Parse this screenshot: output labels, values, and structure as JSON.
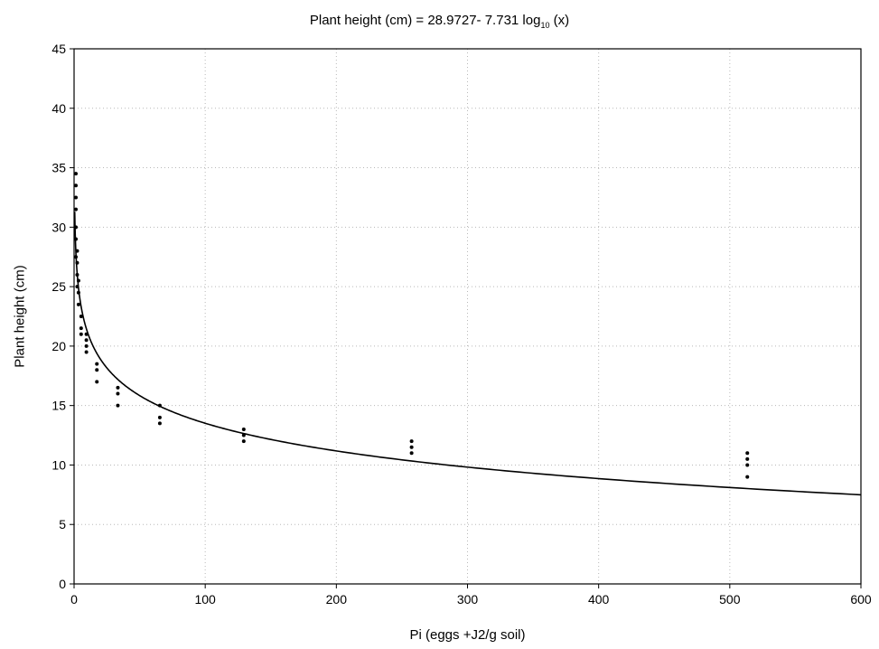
{
  "chart_data": {
    "type": "scatter",
    "title": {
      "prefix": "Plant height (cm) = 28.9727- 7.731 log",
      "subscript": "10",
      "suffix": " (x)"
    },
    "xlabel": "Pi (eggs +J2/g soil)",
    "ylabel": "Plant height (cm)",
    "xlim": [
      0,
      600
    ],
    "ylim": [
      0,
      45
    ],
    "xticks": [
      0,
      100,
      200,
      300,
      400,
      500,
      600
    ],
    "yticks": [
      0,
      5,
      10,
      15,
      20,
      25,
      30,
      35,
      40,
      45
    ],
    "grid": true,
    "fit": {
      "intercept": 28.9727,
      "slope": -7.731,
      "log_base": 10
    },
    "series": [
      {
        "points": [
          {
            "x": 0,
            "y": 34.5
          },
          {
            "x": 0,
            "y": 33.5
          },
          {
            "x": 0,
            "y": 32.5
          },
          {
            "x": 0,
            "y": 31.5
          },
          {
            "x": 0,
            "y": 30
          },
          {
            "x": 0,
            "y": 29
          },
          {
            "x": 0,
            "y": 27.5
          },
          {
            "x": 1,
            "y": 28
          },
          {
            "x": 1,
            "y": 27
          },
          {
            "x": 1,
            "y": 26
          },
          {
            "x": 1,
            "y": 25
          },
          {
            "x": 2,
            "y": 25.5
          },
          {
            "x": 2,
            "y": 24.5
          },
          {
            "x": 2,
            "y": 23.5
          },
          {
            "x": 4,
            "y": 22.5
          },
          {
            "x": 4,
            "y": 21.5
          },
          {
            "x": 4,
            "y": 21
          },
          {
            "x": 8,
            "y": 21
          },
          {
            "x": 8,
            "y": 20.5
          },
          {
            "x": 8,
            "y": 20
          },
          {
            "x": 8,
            "y": 19.5
          },
          {
            "x": 16,
            "y": 18.5
          },
          {
            "x": 16,
            "y": 18
          },
          {
            "x": 16,
            "y": 17
          },
          {
            "x": 32,
            "y": 16.5
          },
          {
            "x": 32,
            "y": 16
          },
          {
            "x": 32,
            "y": 15
          },
          {
            "x": 64,
            "y": 15
          },
          {
            "x": 64,
            "y": 14
          },
          {
            "x": 64,
            "y": 13.5
          },
          {
            "x": 128,
            "y": 13
          },
          {
            "x": 128,
            "y": 12.5
          },
          {
            "x": 128,
            "y": 12
          },
          {
            "x": 256,
            "y": 12
          },
          {
            "x": 256,
            "y": 11.5
          },
          {
            "x": 256,
            "y": 11
          },
          {
            "x": 512,
            "y": 11
          },
          {
            "x": 512,
            "y": 10.5
          },
          {
            "x": 512,
            "y": 10
          },
          {
            "x": 512,
            "y": 9
          }
        ]
      }
    ]
  }
}
